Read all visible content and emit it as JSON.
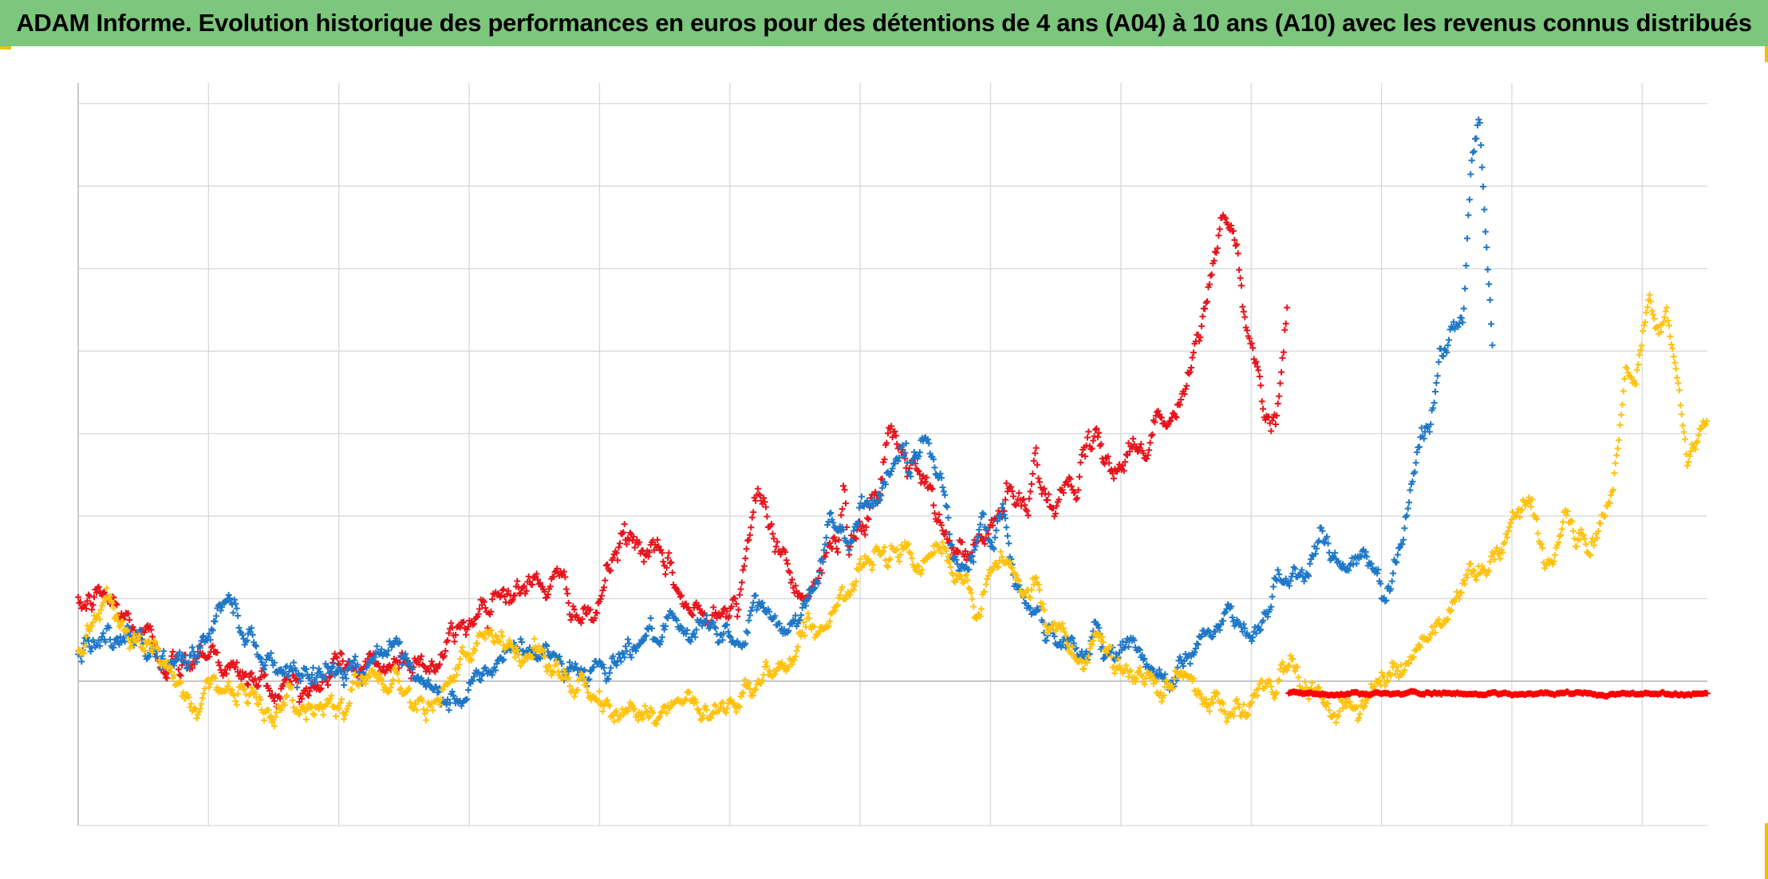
{
  "title": "ADAM Informe. Evolution historique des performances en euros pour des détentions de 4 ans (A04) à 10 ans (A10) avec les revenus connus distribués",
  "colors": {
    "title_background": "#7dc67d",
    "corner_accent": "#f0c000",
    "grid": "#d9d9d9",
    "zero_line": "#bfbfbf"
  },
  "chart_data": {
    "type": "scatter",
    "marker": "plus",
    "grid": true,
    "legend": "none",
    "x_domain": [
      0,
      100
    ],
    "y_domain": [
      -0.35,
      1.45
    ],
    "zero_line": 0,
    "x_gridlines": [
      0,
      8,
      16,
      24,
      32,
      40,
      48,
      56,
      64,
      72,
      80,
      88,
      96
    ],
    "y_gridlines": [
      -0.35,
      0,
      0.2,
      0.4,
      0.6,
      0.8,
      1.0,
      1.2,
      1.4
    ],
    "series": [
      {
        "color": "#e8141c",
        "noise": 0.02,
        "x_range": [
          0,
          74.2
        ],
        "keypoints": [
          [
            0,
            0.17
          ],
          [
            1.6,
            0.21
          ],
          [
            2.6,
            0.16
          ],
          [
            3.8,
            0.12
          ],
          [
            5.3,
            0.06
          ],
          [
            6.3,
            0.02
          ],
          [
            7.5,
            0.09
          ],
          [
            8.3,
            0.08
          ],
          [
            9.5,
            0.02
          ],
          [
            11,
            0.0
          ],
          [
            12,
            -0.02
          ],
          [
            13.5,
            0.0
          ],
          [
            14.8,
            -0.03
          ],
          [
            15.9,
            0.06
          ],
          [
            17.5,
            0.02
          ],
          [
            19.1,
            0.04
          ],
          [
            21,
            0.06
          ],
          [
            22,
            0.04
          ],
          [
            23,
            0.1
          ],
          [
            24.5,
            0.17
          ],
          [
            25.5,
            0.23
          ],
          [
            27,
            0.22
          ],
          [
            28.6,
            0.24
          ],
          [
            30,
            0.22
          ],
          [
            31,
            0.15
          ],
          [
            31.5,
            0.13
          ],
          [
            32.5,
            0.26
          ],
          [
            33.5,
            0.35
          ],
          [
            35,
            0.31
          ],
          [
            36.3,
            0.26
          ],
          [
            37.5,
            0.17
          ],
          [
            38.5,
            0.15
          ],
          [
            39.5,
            0.21
          ],
          [
            40.5,
            0.19
          ],
          [
            40.8,
            0.29
          ],
          [
            41.5,
            0.43
          ],
          [
            42.7,
            0.36
          ],
          [
            43.5,
            0.28
          ],
          [
            44.2,
            0.22
          ],
          [
            45,
            0.24
          ],
          [
            45.8,
            0.28
          ],
          [
            46.6,
            0.35
          ],
          [
            47,
            0.5
          ],
          [
            47.3,
            0.34
          ],
          [
            48,
            0.39
          ],
          [
            49.2,
            0.43
          ],
          [
            49.8,
            0.62
          ],
          [
            50.5,
            0.55
          ],
          [
            51.6,
            0.5
          ],
          [
            52.6,
            0.4
          ],
          [
            53.5,
            0.33
          ],
          [
            54.5,
            0.3
          ],
          [
            55,
            0.32
          ],
          [
            56,
            0.36
          ],
          [
            57,
            0.45
          ],
          [
            58.3,
            0.4
          ],
          [
            58.8,
            0.57
          ],
          [
            59.5,
            0.43
          ],
          [
            60.5,
            0.45
          ],
          [
            61.5,
            0.52
          ],
          [
            62.5,
            0.56
          ],
          [
            63.8,
            0.52
          ],
          [
            64.8,
            0.57
          ],
          [
            65.5,
            0.56
          ],
          [
            66.3,
            0.66
          ],
          [
            67,
            0.61
          ],
          [
            67.6,
            0.67
          ],
          [
            68.4,
            0.76
          ],
          [
            68.8,
            0.82
          ],
          [
            69.6,
            1.0
          ],
          [
            70.2,
            1.13
          ],
          [
            70.9,
            1.08
          ],
          [
            71.5,
            0.93
          ],
          [
            72.1,
            0.8
          ],
          [
            72.7,
            0.69
          ],
          [
            73.5,
            0.63
          ],
          [
            74.2,
            0.91
          ]
        ]
      },
      {
        "color": "#1f78c8",
        "noise": 0.018,
        "x_range": [
          0,
          86.8
        ],
        "keypoints": [
          [
            0,
            0.07
          ],
          [
            1,
            0.12
          ],
          [
            2.5,
            0.08
          ],
          [
            3.6,
            0.09
          ],
          [
            4.8,
            0.07
          ],
          [
            5.8,
            0.04
          ],
          [
            7,
            0.05
          ],
          [
            8.5,
            0.15
          ],
          [
            9.3,
            0.21
          ],
          [
            10,
            0.15
          ],
          [
            11,
            0.08
          ],
          [
            12,
            0.04
          ],
          [
            13.8,
            0.03
          ],
          [
            15,
            0.02
          ],
          [
            16.5,
            0.03
          ],
          [
            17.5,
            0.04
          ],
          [
            18.7,
            0.09
          ],
          [
            20,
            0.02
          ],
          [
            21.3,
            -0.03
          ],
          [
            22.3,
            -0.05
          ],
          [
            23.5,
            -0.04
          ],
          [
            24.5,
            0.0
          ],
          [
            26,
            0.05
          ],
          [
            27.2,
            0.08
          ],
          [
            28.4,
            0.07
          ],
          [
            29.5,
            0.05
          ],
          [
            31,
            0.02
          ],
          [
            32,
            0.04
          ],
          [
            33.5,
            0.07
          ],
          [
            34.5,
            0.1
          ],
          [
            36,
            0.12
          ],
          [
            37.5,
            0.09
          ],
          [
            39,
            0.15
          ],
          [
            40,
            0.11
          ],
          [
            40.6,
            0.06
          ],
          [
            41.5,
            0.18
          ],
          [
            43,
            0.15
          ],
          [
            43.5,
            0.11
          ],
          [
            44.5,
            0.18
          ],
          [
            45.5,
            0.28
          ],
          [
            46.2,
            0.4
          ],
          [
            46.8,
            0.34
          ],
          [
            47.5,
            0.31
          ],
          [
            48,
            0.44
          ],
          [
            49,
            0.45
          ],
          [
            49.8,
            0.51
          ],
          [
            50.5,
            0.58
          ],
          [
            51,
            0.5
          ],
          [
            52,
            0.6
          ],
          [
            53,
            0.49
          ],
          [
            53.7,
            0.33
          ],
          [
            54.5,
            0.26
          ],
          [
            55.5,
            0.39
          ],
          [
            56.2,
            0.32
          ],
          [
            56.8,
            0.42
          ],
          [
            57.5,
            0.25
          ],
          [
            58.5,
            0.19
          ],
          [
            59.5,
            0.12
          ],
          [
            60.5,
            0.09
          ],
          [
            61.8,
            0.05
          ],
          [
            62.4,
            0.14
          ],
          [
            63.8,
            0.05
          ],
          [
            64.5,
            0.11
          ],
          [
            65.2,
            0.05
          ],
          [
            65.8,
            0.0
          ],
          [
            66.5,
            0.02
          ],
          [
            67.5,
            0.04
          ],
          [
            68.3,
            0.06
          ],
          [
            69.1,
            0.12
          ],
          [
            69.8,
            0.1
          ],
          [
            70.5,
            0.17
          ],
          [
            71.4,
            0.12
          ],
          [
            72.1,
            0.09
          ],
          [
            73,
            0.17
          ],
          [
            73.5,
            0.26
          ],
          [
            74.5,
            0.26
          ],
          [
            75.5,
            0.27
          ],
          [
            76.3,
            0.38
          ],
          [
            77,
            0.3
          ],
          [
            78.3,
            0.29
          ],
          [
            79.3,
            0.28
          ],
          [
            80.2,
            0.21
          ],
          [
            80.7,
            0.28
          ],
          [
            81.6,
            0.42
          ],
          [
            82.4,
            0.59
          ],
          [
            83,
            0.62
          ],
          [
            83.6,
            0.79
          ],
          [
            84.3,
            0.85
          ],
          [
            85,
            0.87
          ],
          [
            85.5,
            1.25
          ],
          [
            86,
            1.38
          ],
          [
            86.3,
            1.16
          ],
          [
            86.8,
            0.83
          ]
        ]
      },
      {
        "color": "#ffc20e",
        "noise": 0.018,
        "x_range": [
          0,
          100
        ],
        "keypoints": [
          [
            0,
            0.09
          ],
          [
            1,
            0.16
          ],
          [
            1.8,
            0.22
          ],
          [
            2.7,
            0.16
          ],
          [
            3.6,
            0.11
          ],
          [
            5,
            0.05
          ],
          [
            6.3,
            -0.02
          ],
          [
            7.3,
            -0.07
          ],
          [
            8,
            0.02
          ],
          [
            9,
            -0.02
          ],
          [
            10,
            -0.03
          ],
          [
            11,
            -0.05
          ],
          [
            12.5,
            -0.07
          ],
          [
            14,
            -0.06
          ],
          [
            15,
            -0.05
          ],
          [
            16.3,
            -0.04
          ],
          [
            17.3,
            0.0
          ],
          [
            18.5,
            0.03
          ],
          [
            19.5,
            -0.01
          ],
          [
            20.5,
            -0.04
          ],
          [
            22,
            -0.02
          ],
          [
            23.5,
            0.03
          ],
          [
            24.5,
            0.08
          ],
          [
            25.7,
            0.1
          ],
          [
            27,
            0.06
          ],
          [
            28.5,
            0.07
          ],
          [
            29.5,
            0.02
          ],
          [
            30.5,
            -0.01
          ],
          [
            32,
            -0.06
          ],
          [
            33,
            -0.08
          ],
          [
            34.5,
            -0.06
          ],
          [
            36,
            -0.08
          ],
          [
            37.5,
            -0.06
          ],
          [
            38.5,
            -0.09
          ],
          [
            39.5,
            -0.06
          ],
          [
            40.5,
            -0.03
          ],
          [
            42,
            0.02
          ],
          [
            43.5,
            0.04
          ],
          [
            44.8,
            0.13
          ],
          [
            46,
            0.14
          ],
          [
            47.5,
            0.22
          ],
          [
            49,
            0.31
          ],
          [
            50.5,
            0.34
          ],
          [
            51.5,
            0.31
          ],
          [
            52.5,
            0.33
          ],
          [
            53.5,
            0.28
          ],
          [
            54.5,
            0.23
          ],
          [
            55,
            0.15
          ],
          [
            56,
            0.24
          ],
          [
            57,
            0.31
          ],
          [
            58,
            0.2
          ],
          [
            58.8,
            0.22
          ],
          [
            59.5,
            0.12
          ],
          [
            60.5,
            0.12
          ],
          [
            61.5,
            0.06
          ],
          [
            62.3,
            0.13
          ],
          [
            63,
            0.08
          ],
          [
            64.5,
            0.02
          ],
          [
            65.5,
            -0.02
          ],
          [
            66.5,
            -0.03
          ],
          [
            67.6,
            0.03
          ],
          [
            68.6,
            0.0
          ],
          [
            69.5,
            -0.04
          ],
          [
            70.4,
            -0.09
          ],
          [
            71.5,
            -0.06
          ],
          [
            73,
            -0.03
          ],
          [
            74.5,
            0.05
          ],
          [
            75.5,
            -0.02
          ],
          [
            76.5,
            -0.05
          ],
          [
            77.5,
            -0.06
          ],
          [
            78.5,
            -0.07
          ],
          [
            79.5,
            -0.03
          ],
          [
            80.5,
            0.02
          ],
          [
            81.6,
            0.06
          ],
          [
            82.5,
            0.1
          ],
          [
            83.5,
            0.14
          ],
          [
            84.5,
            0.2
          ],
          [
            85.6,
            0.26
          ],
          [
            86.5,
            0.27
          ],
          [
            87.5,
            0.33
          ],
          [
            88.3,
            0.4
          ],
          [
            89,
            0.44
          ],
          [
            90,
            0.28
          ],
          [
            91.3,
            0.4
          ],
          [
            92,
            0.35
          ],
          [
            92.8,
            0.34
          ],
          [
            93.7,
            0.42
          ],
          [
            94.2,
            0.44
          ],
          [
            95,
            0.75
          ],
          [
            95.6,
            0.72
          ],
          [
            96.4,
            0.94
          ],
          [
            97,
            0.84
          ],
          [
            97.5,
            0.9
          ],
          [
            98.2,
            0.73
          ],
          [
            98.8,
            0.53
          ],
          [
            99.5,
            0.6
          ],
          [
            100,
            0.6
          ]
        ]
      },
      {
        "color": "#ff0000",
        "noise": 0.002,
        "x_range": [
          74.3,
          100
        ],
        "keypoints": [
          [
            74.3,
            -0.03
          ],
          [
            100,
            -0.03
          ]
        ]
      }
    ]
  }
}
